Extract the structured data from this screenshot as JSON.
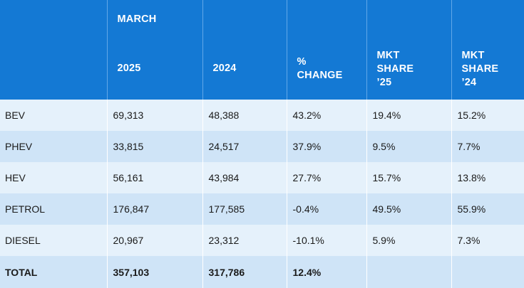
{
  "header": {
    "month": "MARCH",
    "col_2025": "2025",
    "col_2024": "2024",
    "change": [
      "%",
      "CHANGE"
    ],
    "share25": [
      "MKT",
      "SHARE",
      "’25"
    ],
    "share24": [
      "MKT",
      "SHARE",
      "’24"
    ]
  },
  "rows": [
    {
      "type": "BEV",
      "v2025": "69,313",
      "v2024": "48,388",
      "change": "43.2%",
      "share25": "19.4%",
      "share24": "15.2%"
    },
    {
      "type": "PHEV",
      "v2025": "33,815",
      "v2024": "24,517",
      "change": "37.9%",
      "share25": "9.5%",
      "share24": "7.7%"
    },
    {
      "type": "HEV",
      "v2025": "56,161",
      "v2024": "43,984",
      "change": "27.7%",
      "share25": "15.7%",
      "share24": "13.8%"
    },
    {
      "type": "PETROL",
      "v2025": "176,847",
      "v2024": "177,585",
      "change": "-0.4%",
      "share25": "49.5%",
      "share24": "55.9%"
    },
    {
      "type": "DIESEL",
      "v2025": "20,967",
      "v2024": "23,312",
      "change": "-10.1%",
      "share25": "5.9%",
      "share24": "7.3%"
    }
  ],
  "total": {
    "type": "TOTAL",
    "v2025": "357,103",
    "v2024": "317,786",
    "change": "12.4%",
    "share25": "",
    "share24": ""
  }
}
